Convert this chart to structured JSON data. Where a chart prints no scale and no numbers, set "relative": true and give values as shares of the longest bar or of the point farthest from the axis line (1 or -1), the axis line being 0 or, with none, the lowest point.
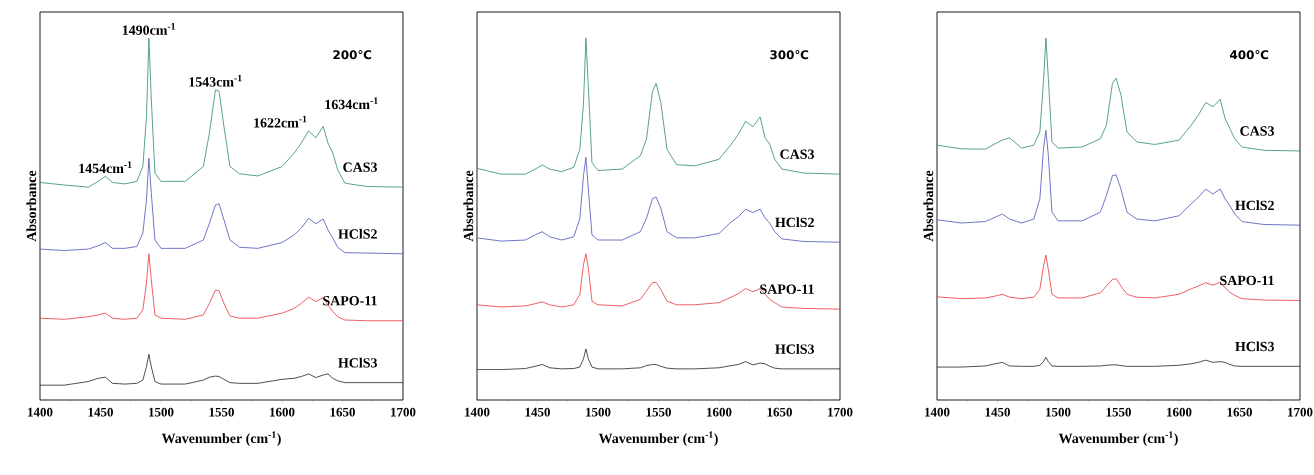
{
  "chart_data": [
    {
      "type": "line",
      "relative": true,
      "marker": "none",
      "xlabel": "Wavenumber (cm$^{-1}$)",
      "ylabel": "Absorbance",
      "xlim": [
        1400,
        1700
      ],
      "xticks": [
        1400,
        1450,
        1500,
        1550,
        1600,
        1650,
        1700
      ],
      "x": [
        1400,
        1420,
        1440,
        1448,
        1454,
        1460,
        1470,
        1480,
        1485,
        1488,
        1490,
        1492,
        1495,
        1500,
        1520,
        1535,
        1540,
        1545,
        1548,
        1552,
        1557,
        1565,
        1580,
        1600,
        1610,
        1616,
        1622,
        1628,
        1634,
        1638,
        1642,
        1646,
        1652,
        1670,
        1700
      ],
      "annotations": [
        {
          "text": "1454cm$^{-1}$",
          "x": 1454,
          "y": 0.618
        },
        {
          "text": "1490cm$^{-1}$",
          "x": 1490,
          "y": 1.0
        },
        {
          "text": "1543cm$^{-1}$",
          "x": 1545,
          "y": 0.857
        },
        {
          "text": "1622cm$^{-1}$",
          "x": 1622,
          "y": 0.744
        },
        {
          "text": "1634cm$^{-1}$",
          "x": 1634,
          "y": 0.756
        },
        "200℃"
      ],
      "series": [
        {
          "name": "CAS3",
          "color": "#2f8a72",
          "values": [
            0.601,
            0.594,
            0.588,
            0.604,
            0.618,
            0.601,
            0.597,
            0.604,
            0.645,
            0.783,
            1.0,
            0.829,
            0.627,
            0.604,
            0.604,
            0.645,
            0.737,
            0.857,
            0.853,
            0.756,
            0.645,
            0.625,
            0.619,
            0.645,
            0.682,
            0.71,
            0.744,
            0.724,
            0.756,
            0.71,
            0.682,
            0.636,
            0.599,
            0.59,
            0.588
          ]
        },
        {
          "name": "HClS2",
          "color": "#4a55b5",
          "values": [
            0.417,
            0.413,
            0.417,
            0.426,
            0.435,
            0.419,
            0.419,
            0.424,
            0.461,
            0.553,
            0.668,
            0.571,
            0.442,
            0.419,
            0.419,
            0.442,
            0.488,
            0.539,
            0.542,
            0.498,
            0.442,
            0.422,
            0.419,
            0.435,
            0.456,
            0.475,
            0.502,
            0.487,
            0.5,
            0.47,
            0.447,
            0.422,
            0.407,
            0.406,
            0.404
          ]
        },
        {
          "name": "SAPO-11",
          "color": "#e8383a",
          "values": [
            0.226,
            0.223,
            0.23,
            0.235,
            0.24,
            0.226,
            0.223,
            0.226,
            0.249,
            0.323,
            0.404,
            0.332,
            0.235,
            0.226,
            0.223,
            0.235,
            0.267,
            0.304,
            0.302,
            0.267,
            0.232,
            0.226,
            0.226,
            0.24,
            0.253,
            0.267,
            0.284,
            0.272,
            0.283,
            0.263,
            0.244,
            0.23,
            0.221,
            0.219,
            0.219
          ]
        },
        {
          "name": "HClS3",
          "color": "#222222",
          "values": [
            0.041,
            0.041,
            0.051,
            0.06,
            0.063,
            0.046,
            0.044,
            0.046,
            0.055,
            0.092,
            0.126,
            0.092,
            0.051,
            0.044,
            0.044,
            0.055,
            0.063,
            0.066,
            0.065,
            0.057,
            0.048,
            0.046,
            0.046,
            0.057,
            0.06,
            0.065,
            0.072,
            0.062,
            0.069,
            0.072,
            0.06,
            0.053,
            0.048,
            0.048,
            0.048
          ]
        }
      ]
    },
    {
      "type": "line",
      "relative": true,
      "marker": "none",
      "xlabel": "Wavenumber (cm$^{-1}$)",
      "ylabel": "Absorbance",
      "xlim": [
        1400,
        1700
      ],
      "xticks": [
        1400,
        1450,
        1500,
        1550,
        1600,
        1650,
        1700
      ],
      "x": [
        1400,
        1420,
        1440,
        1448,
        1454,
        1460,
        1470,
        1480,
        1485,
        1488,
        1490,
        1492,
        1495,
        1500,
        1520,
        1535,
        1540,
        1545,
        1548,
        1552,
        1557,
        1565,
        1580,
        1600,
        1610,
        1616,
        1622,
        1628,
        1634,
        1638,
        1642,
        1646,
        1652,
        1670,
        1700
      ],
      "annotations": [
        "300℃"
      ],
      "series": [
        {
          "name": "CAS3",
          "color": "#2f8a72",
          "values": [
            0.64,
            0.624,
            0.624,
            0.638,
            0.649,
            0.638,
            0.631,
            0.643,
            0.693,
            0.82,
            1.0,
            0.866,
            0.656,
            0.634,
            0.638,
            0.675,
            0.72,
            0.852,
            0.875,
            0.82,
            0.693,
            0.65,
            0.647,
            0.665,
            0.706,
            0.734,
            0.77,
            0.755,
            0.782,
            0.725,
            0.706,
            0.665,
            0.638,
            0.627,
            0.624
          ]
        },
        {
          "name": "HClS2",
          "color": "#4a55b5",
          "values": [
            0.448,
            0.439,
            0.442,
            0.456,
            0.465,
            0.451,
            0.442,
            0.451,
            0.501,
            0.62,
            0.67,
            0.583,
            0.456,
            0.442,
            0.442,
            0.465,
            0.501,
            0.556,
            0.561,
            0.529,
            0.465,
            0.448,
            0.448,
            0.46,
            0.492,
            0.506,
            0.527,
            0.518,
            0.527,
            0.503,
            0.488,
            0.465,
            0.445,
            0.438,
            0.436
          ]
        },
        {
          "name": "SAPO-11",
          "color": "#e8383a",
          "values": [
            0.263,
            0.257,
            0.26,
            0.266,
            0.271,
            0.263,
            0.257,
            0.263,
            0.292,
            0.374,
            0.404,
            0.365,
            0.273,
            0.263,
            0.26,
            0.278,
            0.301,
            0.324,
            0.325,
            0.305,
            0.273,
            0.263,
            0.263,
            0.269,
            0.284,
            0.294,
            0.308,
            0.299,
            0.308,
            0.292,
            0.278,
            0.269,
            0.257,
            0.253,
            0.251
          ]
        },
        {
          "name": "HClS3",
          "color": "#222222",
          "values": [
            0.084,
            0.084,
            0.087,
            0.093,
            0.098,
            0.089,
            0.086,
            0.087,
            0.091,
            0.114,
            0.141,
            0.114,
            0.091,
            0.086,
            0.086,
            0.089,
            0.095,
            0.098,
            0.098,
            0.093,
            0.088,
            0.086,
            0.086,
            0.089,
            0.095,
            0.098,
            0.106,
            0.097,
            0.102,
            0.1,
            0.093,
            0.088,
            0.086,
            0.086,
            0.086
          ]
        }
      ]
    },
    {
      "type": "line",
      "relative": true,
      "marker": "none",
      "xlabel": "Wavenumber (cm$^{-1}$)",
      "ylabel": "Absorbance",
      "xlim": [
        1400,
        1700
      ],
      "xticks": [
        1400,
        1450,
        1500,
        1550,
        1600,
        1650,
        1700
      ],
      "x": [
        1400,
        1420,
        1440,
        1448,
        1454,
        1460,
        1470,
        1480,
        1485,
        1488,
        1490,
        1492,
        1495,
        1500,
        1520,
        1535,
        1540,
        1545,
        1548,
        1552,
        1557,
        1565,
        1580,
        1600,
        1610,
        1616,
        1622,
        1628,
        1634,
        1638,
        1642,
        1646,
        1652,
        1670,
        1700
      ],
      "annotations": [
        "400℃"
      ],
      "series": [
        {
          "name": "CAS3",
          "color": "#2f8a72",
          "values": [
            0.704,
            0.694,
            0.693,
            0.708,
            0.718,
            0.724,
            0.696,
            0.704,
            0.741,
            0.88,
            1.0,
            0.889,
            0.713,
            0.696,
            0.699,
            0.722,
            0.759,
            0.875,
            0.889,
            0.843,
            0.741,
            0.713,
            0.706,
            0.718,
            0.759,
            0.787,
            0.822,
            0.81,
            0.831,
            0.778,
            0.75,
            0.722,
            0.699,
            0.69,
            0.688
          ]
        },
        {
          "name": "HClS2",
          "color": "#4a55b5",
          "values": [
            0.498,
            0.489,
            0.493,
            0.505,
            0.514,
            0.5,
            0.489,
            0.5,
            0.556,
            0.694,
            0.745,
            0.676,
            0.519,
            0.495,
            0.495,
            0.519,
            0.565,
            0.62,
            0.622,
            0.583,
            0.519,
            0.5,
            0.495,
            0.509,
            0.542,
            0.56,
            0.583,
            0.569,
            0.583,
            0.556,
            0.537,
            0.514,
            0.493,
            0.485,
            0.483
          ]
        },
        {
          "name": "SAPO-11",
          "color": "#e8383a",
          "values": [
            0.285,
            0.28,
            0.282,
            0.287,
            0.292,
            0.284,
            0.28,
            0.284,
            0.306,
            0.37,
            0.4,
            0.361,
            0.292,
            0.282,
            0.282,
            0.296,
            0.315,
            0.333,
            0.335,
            0.315,
            0.292,
            0.284,
            0.282,
            0.292,
            0.307,
            0.315,
            0.324,
            0.317,
            0.326,
            0.31,
            0.298,
            0.289,
            0.28,
            0.276,
            0.275
          ]
        },
        {
          "name": "HClS3",
          "color": "#222222",
          "values": [
            0.091,
            0.091,
            0.094,
            0.1,
            0.104,
            0.094,
            0.093,
            0.093,
            0.096,
            0.106,
            0.118,
            0.106,
            0.094,
            0.093,
            0.093,
            0.094,
            0.096,
            0.097,
            0.097,
            0.095,
            0.093,
            0.093,
            0.093,
            0.096,
            0.1,
            0.104,
            0.11,
            0.104,
            0.106,
            0.104,
            0.098,
            0.094,
            0.093,
            0.093,
            0.093
          ]
        }
      ]
    }
  ]
}
